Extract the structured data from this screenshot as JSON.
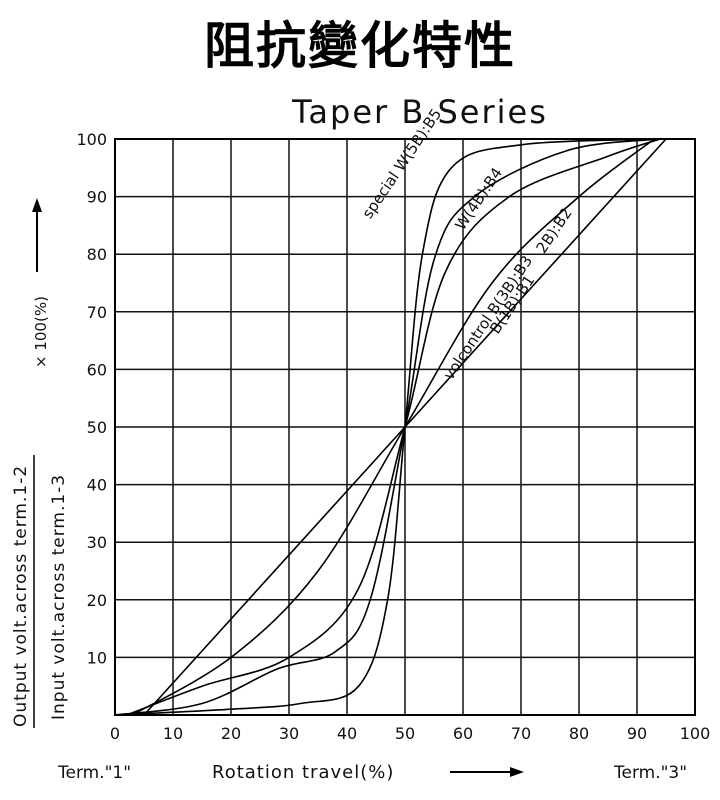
{
  "page_title": "阻抗變化特性",
  "chart_data": {
    "type": "line",
    "title": "Taper B Series",
    "xlabel": "Rotation travel(%)",
    "ylabel_top": "Output volt.across term.1-2",
    "ylabel_bottom": "Input volt.across term.1-3",
    "ylabel_multiplier": "× 100(%)",
    "x_left_label": "Term.\"1\"",
    "x_right_label": "Term.\"3\"",
    "xlim": [
      0,
      100
    ],
    "ylim": [
      0,
      100
    ],
    "x_ticks": [
      0,
      10,
      20,
      30,
      40,
      50,
      60,
      70,
      80,
      90,
      100
    ],
    "y_ticks": [
      10,
      20,
      30,
      40,
      50,
      60,
      70,
      80,
      90,
      100
    ],
    "grid": true,
    "series": [
      {
        "name": "B(1B):B1",
        "label_anchor": [
          66,
          66
        ],
        "points": [
          [
            5,
            0
          ],
          [
            50,
            50
          ],
          [
            95,
            100
          ]
        ]
      },
      {
        "name": "2B):B2",
        "label_anchor": [
          74,
          80
        ],
        "points": [
          [
            3,
            0
          ],
          [
            20,
            10
          ],
          [
            35,
            25
          ],
          [
            50,
            50
          ],
          [
            65,
            75
          ],
          [
            80,
            90
          ],
          [
            93,
            100
          ]
        ]
      },
      {
        "name": "volcontrol B(3B):B3",
        "label_anchor": [
          58,
          58
        ],
        "points": [
          [
            2,
            0
          ],
          [
            15,
            5
          ],
          [
            30,
            10
          ],
          [
            42,
            22
          ],
          [
            50,
            50
          ],
          [
            57,
            77
          ],
          [
            68,
            90
          ],
          [
            85,
            97
          ],
          [
            94,
            100
          ]
        ]
      },
      {
        "name": "W(4B):B4",
        "label_anchor": [
          60,
          84
        ],
        "points": [
          [
            0,
            0
          ],
          [
            15,
            2
          ],
          [
            28,
            8
          ],
          [
            38,
            11
          ],
          [
            44,
            20
          ],
          [
            50,
            50
          ],
          [
            55,
            79
          ],
          [
            62,
            90
          ],
          [
            78,
            98
          ],
          [
            94,
            100
          ]
        ]
      },
      {
        "name": "special W(5B):B5",
        "label_anchor": [
          44,
          86
        ],
        "points": [
          [
            0,
            0
          ],
          [
            20,
            1
          ],
          [
            32,
            2
          ],
          [
            42,
            5
          ],
          [
            47,
            20
          ],
          [
            50,
            50
          ],
          [
            53,
            80
          ],
          [
            58,
            95
          ],
          [
            70,
            99
          ],
          [
            94,
            100
          ]
        ]
      }
    ]
  }
}
